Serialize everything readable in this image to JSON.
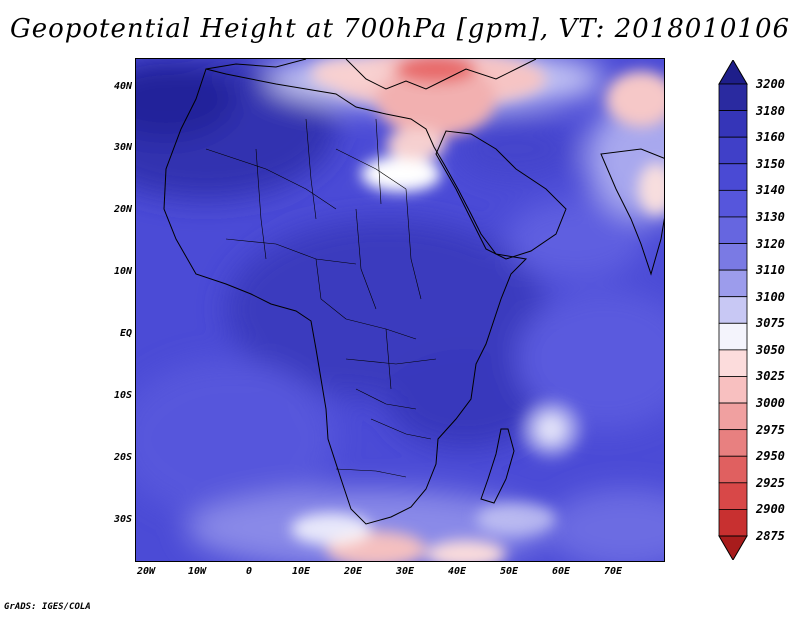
{
  "title": "Geopotential Height at 700hPa [gpm], VT: 2018010106",
  "footer": "GrADS: IGES/COLA",
  "map": {
    "lat_labels": [
      "40N",
      "30N",
      "20N",
      "10N",
      "EQ",
      "10S",
      "20S",
      "30S"
    ],
    "lon_labels": [
      "20W",
      "10W",
      "0",
      "10E",
      "20E",
      "30E",
      "40E",
      "50E",
      "60E",
      "70E"
    ]
  },
  "colorbar": {
    "labels": [
      "3200",
      "3180",
      "3160",
      "3150",
      "3140",
      "3130",
      "3120",
      "3110",
      "3100",
      "3075",
      "3050",
      "3025",
      "3000",
      "2975",
      "2950",
      "2925",
      "2900",
      "2875"
    ],
    "colors": [
      "#2a2aa0",
      "#3535b8",
      "#4040c8",
      "#4a4ad4",
      "#5656dc",
      "#6666e0",
      "#7a7ae4",
      "#9c9cec",
      "#c8c8f4",
      "#f4f4fc",
      "#fcdcdc",
      "#f8c0c0",
      "#f0a0a0",
      "#e88080",
      "#e06060",
      "#d84848",
      "#c83030",
      "#a81c1c"
    ],
    "top_arrow_color": "#1e1e8a",
    "bottom_arrow_color": "#a81c1c"
  }
}
